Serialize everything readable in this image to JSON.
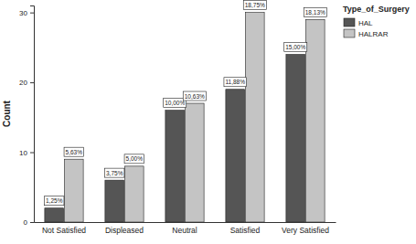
{
  "chart_data": {
    "type": "bar",
    "y_label": "Count",
    "legend_title": "Type_of_Surgery",
    "legend": "top-right",
    "categories": [
      "Not Satisfied",
      "Displeased",
      "Neutral",
      "Satisfied",
      "Very Satisfied"
    ],
    "series": [
      {
        "name": "HAL",
        "color": "#555555",
        "values": [
          2,
          6,
          16,
          19,
          24
        ],
        "labels": [
          "1,25%",
          "3,75%",
          "10,00%",
          "11,88%",
          "15,00%"
        ]
      },
      {
        "name": "HALRAR",
        "color": "#c4c4c4",
        "values": [
          9,
          8,
          17,
          30,
          29
        ],
        "labels": [
          "5,63%",
          "5,00%",
          "10,63%",
          "18,75%",
          "18,13%"
        ]
      }
    ],
    "ylim": [
      0,
      31
    ],
    "yticks": [
      0,
      10,
      20,
      30
    ],
    "grid": false
  }
}
